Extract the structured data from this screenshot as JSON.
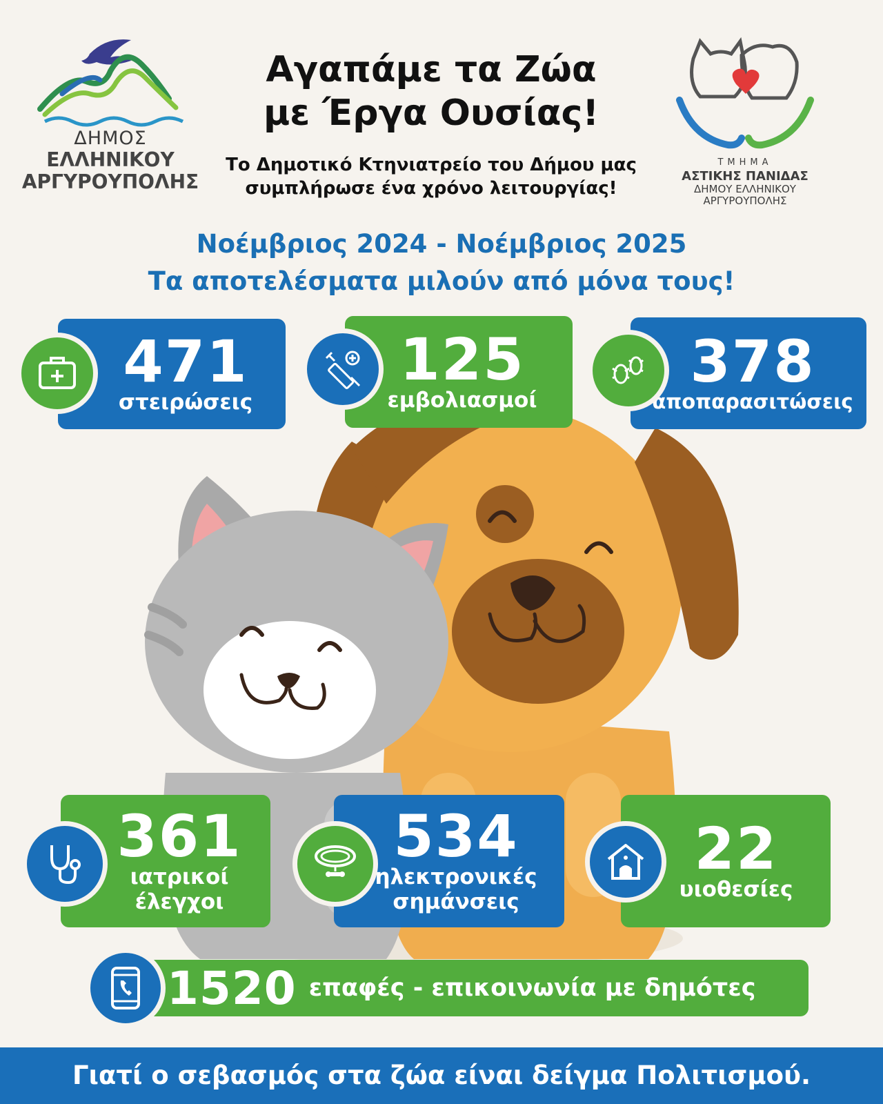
{
  "header": {
    "title_line1": "Αγαπάμε τα Ζώα",
    "title_line2": "με Έργα Ουσίας!",
    "subtitle_line1": "Το Δημοτικό Κτηνιατρείο του Δήμου μας",
    "subtitle_line2": "συμπλήρωσε ένα χρόνο λειτουργίας!"
  },
  "logo_left": {
    "line1": "ΔΗΜΟΣ",
    "line2": "ΕΛΛΗΝΙΚΟΥ",
    "line3": "ΑΡΓΥΡΟΥΠΟΛΗΣ"
  },
  "logo_right": {
    "line1": "ΤΜΗΜΑ",
    "line2": "ΑΣΤΙΚΗΣ ΠΑΝΙΔΑΣ",
    "line3": "ΔΗΜΟΥ ΕΛΛΗΝΙΚΟΥ",
    "line4": "ΑΡΓΥΡΟΥΠΟΛΗΣ"
  },
  "period": {
    "line1": "Νοέμβριος 2024 - Νοέμβριος 2025",
    "line2": "Τα αποτελέσματα μιλούν από μόνα τους!"
  },
  "stats": [
    {
      "value": "471",
      "label": "στειρώσεις",
      "icon": "medical-kit-icon"
    },
    {
      "value": "125",
      "label": "εμβολιασμοί",
      "icon": "syringe-icon"
    },
    {
      "value": "378",
      "label": "αποπαρασιτώσεις",
      "icon": "bugs-icon"
    },
    {
      "value": "361",
      "label_line1": "ιατρικοί",
      "label_line2": "έλεγχοι",
      "icon": "stethoscope-icon"
    },
    {
      "value": "534",
      "label_line1": "ηλεκτρονικές",
      "label_line2": "σημάνσεις",
      "icon": "collar-icon"
    },
    {
      "value": "22",
      "label": "υιοθεσίες",
      "icon": "dog-house-icon"
    }
  ],
  "contact": {
    "value": "1520",
    "label": "επαφές - επικοινωνία με δημότες",
    "icon": "phone-icon"
  },
  "footer": {
    "text": "Γιατί ο σεβασμός στα ζώα είναι δείγμα Πολιτισμού."
  },
  "colors": {
    "blue": "#1a6fb9",
    "green": "#52ad3d",
    "background": "#f6f3ee"
  }
}
